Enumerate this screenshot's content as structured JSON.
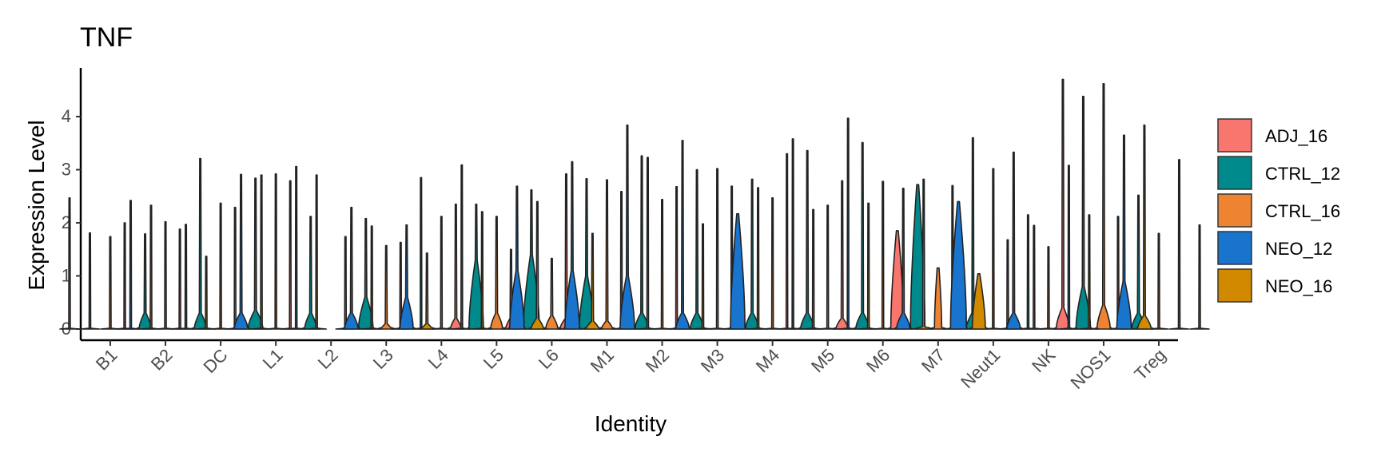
{
  "chart_data": {
    "type": "violin",
    "title": "TNF",
    "xlabel": "Identity",
    "ylabel": "Expression Level",
    "ylim": [
      -0.2,
      4.85
    ],
    "yticks": [
      0,
      1,
      2,
      3,
      4
    ],
    "legend_position": "right",
    "grid": false,
    "categories": [
      "B1",
      "B2",
      "DC",
      "L1",
      "L2",
      "L3",
      "L4",
      "L5",
      "L6",
      "M1",
      "M2",
      "M3",
      "M4",
      "M5",
      "M6",
      "M7",
      "Neut1",
      "NK",
      "NOS1",
      "Treg"
    ],
    "series": [
      {
        "name": "ADJ_16",
        "color": "#F8766D",
        "max": [
          2.47,
          2.0,
          1.88,
          2.29,
          2.79,
          1.74,
          1.63,
          2.35,
          1.5,
          2.92,
          2.59,
          2.68,
          2.69,
          3.3,
          2.79,
          1.85,
          2.7,
          1.68,
          4.7,
          2.12
        ],
        "body_height": [
          0,
          0,
          0,
          0,
          0,
          0,
          0,
          0.2,
          0.2,
          0.2,
          0,
          0,
          0,
          0,
          0.2,
          1.85,
          0,
          0,
          0.4,
          0
        ],
        "body_width": [
          0,
          0,
          0,
          0,
          0,
          0,
          0,
          0.35,
          0.35,
          0.4,
          0,
          0,
          0,
          0,
          0.4,
          0.45,
          0,
          0,
          0.45,
          0
        ]
      },
      {
        "name": "CTRL_12",
        "color": "#00898A",
        "max": [
          1.81,
          1.79,
          3.21,
          2.84,
          2.12,
          2.08,
          2.85,
          2.35,
          2.62,
          2.83,
          3.26,
          3.0,
          2.82,
          3.36,
          3.51,
          2.72,
          3.6,
          2.15,
          4.38,
          2.52
        ],
        "body_height": [
          0,
          0.3,
          0.3,
          0.35,
          0.3,
          0.6,
          0,
          1.3,
          1.4,
          1.0,
          0.3,
          0.3,
          0.3,
          0.3,
          0.3,
          2.72,
          0.3,
          0,
          0.8,
          0.3
        ],
        "body_width": [
          0,
          0.4,
          0.4,
          0.5,
          0.4,
          0.5,
          0,
          0.5,
          0.55,
          0.5,
          0.45,
          0.45,
          0.45,
          0.45,
          0.45,
          0.5,
          0.45,
          0,
          0.5,
          0.45
        ]
      },
      {
        "name": "CTRL_16",
        "color": "#EE8431",
        "max": [
          1.74,
          2.02,
          2.37,
          2.92,
          0,
          1.57,
          2.12,
          2.12,
          1.33,
          2.81,
          2.44,
          3.02,
          2.47,
          2.33,
          2.78,
          1.15,
          3.02,
          1.55,
          4.62,
          1.8
        ],
        "body_height": [
          0,
          0,
          0,
          0,
          0,
          0.1,
          0,
          0.3,
          0.25,
          0.15,
          0,
          0,
          0,
          0,
          0,
          1.15,
          0,
          0,
          0.45,
          0
        ],
        "body_width": [
          0,
          0,
          0,
          0,
          0,
          0.3,
          0,
          0.4,
          0.4,
          0.35,
          0,
          0,
          0,
          0,
          0,
          0.25,
          0,
          0,
          0.45,
          0
        ]
      },
      {
        "name": "NEO_12",
        "color": "#1874CD",
        "max": [
          2.42,
          1.97,
          2.91,
          3.06,
          2.29,
          1.96,
          3.09,
          2.69,
          3.15,
          3.84,
          3.55,
          2.17,
          3.58,
          3.97,
          2.65,
          2.4,
          3.33,
          3.08,
          3.65,
          3.19
        ],
        "body_height": [
          0,
          0,
          0.3,
          0,
          0.3,
          0.6,
          0,
          1.1,
          1.1,
          1.0,
          0.3,
          2.17,
          0,
          0,
          0.3,
          2.4,
          0.3,
          0,
          0.9,
          0
        ],
        "body_width": [
          0,
          0,
          0.45,
          0,
          0.45,
          0.45,
          0,
          0.5,
          0.5,
          0.5,
          0.45,
          0.5,
          0,
          0,
          0.45,
          0.55,
          0.45,
          0,
          0.5,
          0
        ]
      },
      {
        "name": "NEO_16",
        "color": "#D18A00",
        "max": [
          2.33,
          1.37,
          2.9,
          2.9,
          1.94,
          1.43,
          2.21,
          2.4,
          1.8,
          3.23,
          1.98,
          2.66,
          2.25,
          2.37,
          2.82,
          1.04,
          1.95,
          2.15,
          3.84,
          1.96
        ],
        "body_height": [
          0,
          0,
          0,
          0,
          0,
          0.1,
          0,
          0.2,
          0.15,
          0,
          0,
          0,
          0,
          0,
          0.05,
          1.04,
          0,
          0,
          0.25,
          0
        ],
        "body_width": [
          0,
          0,
          0,
          0,
          0,
          0.3,
          0,
          0.4,
          0.4,
          0,
          0,
          0,
          0,
          0,
          0.3,
          0.45,
          0,
          0,
          0.45,
          0
        ]
      }
    ]
  }
}
